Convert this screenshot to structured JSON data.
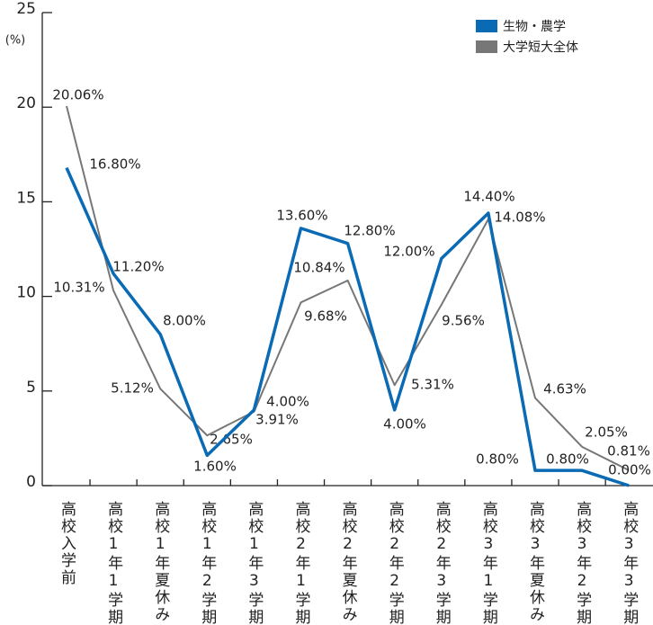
{
  "chart_data": {
    "type": "line",
    "y_unit": "(%)",
    "categories": [
      "高校入学前",
      "高校1年1学期",
      "高校1年夏休み",
      "高校1年2学期",
      "高校1年3学期",
      "高校2年1学期",
      "高校2年夏休み",
      "高校2年2学期",
      "高校2年3学期",
      "高校3年1学期",
      "高校3年夏休み",
      "高校3年2学期",
      "高校3年3学期"
    ],
    "series": [
      {
        "name": "生物・農学",
        "color": "#0a6ab4",
        "values": [
          16.8,
          11.2,
          8.0,
          1.6,
          4.0,
          13.6,
          12.8,
          4.0,
          12.0,
          14.4,
          0.8,
          0.8,
          0.0
        ],
        "value_labels": [
          "16.80%",
          "11.20%",
          "8.00%",
          "1.60%",
          "4.00%",
          "13.60%",
          "12.80%",
          "4.00%",
          "12.00%",
          "14.40%",
          "0.80%",
          "0.80%",
          "0.00%"
        ]
      },
      {
        "name": "大学短大全体",
        "color": "#777777",
        "values": [
          20.06,
          10.31,
          5.12,
          2.65,
          3.91,
          9.68,
          10.84,
          5.31,
          9.56,
          14.08,
          4.63,
          2.05,
          0.81
        ],
        "value_labels": [
          "20.06%",
          "10.31%",
          "5.12%",
          "2.65%",
          "3.91%",
          "9.68%",
          "10.84%",
          "5.31%",
          "9.56%",
          "14.08%",
          "4.63%",
          "2.05%",
          "0.81%"
        ]
      }
    ],
    "ylim": [
      0,
      25
    ],
    "yticks": [
      0,
      5,
      10,
      15,
      20,
      25
    ],
    "legend": "top-right"
  }
}
